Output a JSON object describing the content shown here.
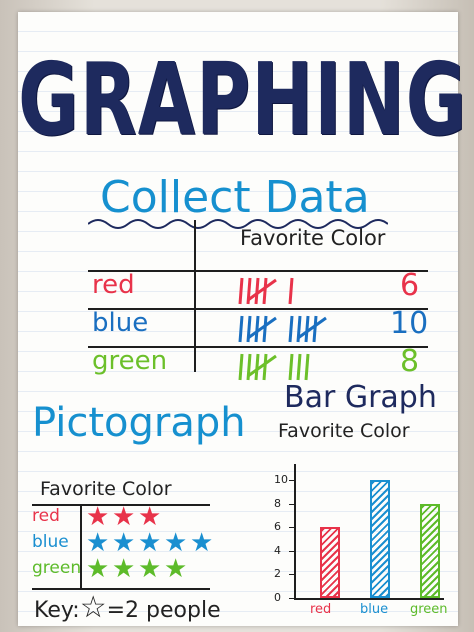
{
  "title": "GRAPHING",
  "collect": {
    "heading": "Collect Data",
    "column_header": "Favorite Color",
    "rows": [
      {
        "label": "red",
        "count": "6",
        "tallies": 6,
        "color": "#e8334a"
      },
      {
        "label": "blue",
        "count": "10",
        "tallies": 10,
        "color": "#1a6fc0"
      },
      {
        "label": "green",
        "count": "8",
        "tallies": 8,
        "color": "#6cc02a"
      }
    ]
  },
  "pictograph": {
    "heading": "Pictograph",
    "chart_title": "Favorite Color",
    "rows": [
      {
        "label": "red",
        "stars": 3,
        "color": "#e8334a"
      },
      {
        "label": "blue",
        "stars": 5,
        "color": "#1a8fd0"
      },
      {
        "label": "green",
        "stars": 4,
        "color": "#5dbb2a"
      }
    ],
    "key_label": "Key:",
    "key_symbol": "☆",
    "key_value": "=2 people"
  },
  "chart_data": {
    "type": "bar",
    "heading": "Bar Graph",
    "title": "Favorite Color",
    "categories": [
      "red",
      "blue",
      "green"
    ],
    "values": [
      6,
      10,
      8
    ],
    "colors": [
      "#e8334a",
      "#1a8fd0",
      "#5dbb2a"
    ],
    "yticks": [
      "0",
      "2",
      "4",
      "6",
      "8",
      "10"
    ],
    "ylim": [
      0,
      10
    ]
  }
}
